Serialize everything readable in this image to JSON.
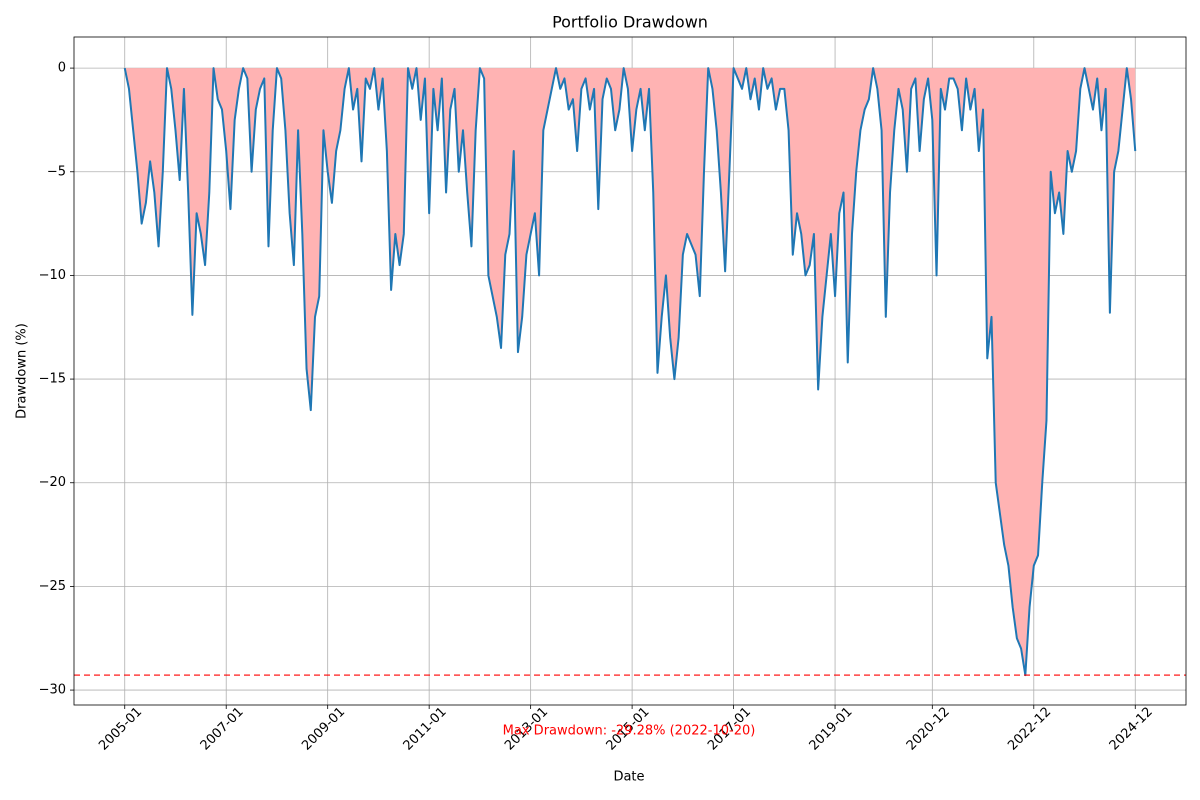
{
  "chart_data": {
    "type": "area-line",
    "title": "Portfolio Drawdown",
    "x_label": "Date",
    "y_label": "Drawdown (%)",
    "x": [
      "2005-01",
      "2005-02",
      "2005-03",
      "2005-04",
      "2005-05",
      "2005-06",
      "2005-07",
      "2005-08",
      "2005-09",
      "2005-10",
      "2005-11",
      "2005-12",
      "2006-01",
      "2006-02",
      "2006-03",
      "2006-04",
      "2006-05",
      "2006-06",
      "2006-07",
      "2006-08",
      "2006-09",
      "2006-10",
      "2006-11",
      "2006-12",
      "2007-01",
      "2007-02",
      "2007-03",
      "2007-04",
      "2007-05",
      "2007-06",
      "2007-07",
      "2007-08",
      "2007-09",
      "2007-10",
      "2007-11",
      "2007-12",
      "2008-01",
      "2008-02",
      "2008-03",
      "2008-04",
      "2008-05",
      "2008-06",
      "2008-07",
      "2008-08",
      "2008-09",
      "2008-10",
      "2008-11",
      "2008-12",
      "2009-01",
      "2009-02",
      "2009-03",
      "2009-04",
      "2009-05",
      "2009-06",
      "2009-07",
      "2009-08",
      "2009-09",
      "2009-10",
      "2009-11",
      "2009-12",
      "2010-01",
      "2010-02",
      "2010-03",
      "2010-04",
      "2010-05",
      "2010-06",
      "2010-07",
      "2010-08",
      "2010-09",
      "2010-10",
      "2010-11",
      "2010-12",
      "2011-01",
      "2011-02",
      "2011-03",
      "2011-04",
      "2011-05",
      "2011-06",
      "2011-07",
      "2011-08",
      "2011-09",
      "2011-10",
      "2011-11",
      "2011-12",
      "2012-01",
      "2012-02",
      "2012-03",
      "2012-04",
      "2012-05",
      "2012-06",
      "2012-07",
      "2012-08",
      "2012-09",
      "2012-10",
      "2012-11",
      "2012-12",
      "2013-01",
      "2013-02",
      "2013-03",
      "2013-04",
      "2013-05",
      "2013-06",
      "2013-07",
      "2013-08",
      "2013-09",
      "2013-10",
      "2013-11",
      "2013-12",
      "2014-01",
      "2014-02",
      "2014-03",
      "2014-04",
      "2014-05",
      "2014-06",
      "2014-07",
      "2014-08",
      "2014-09",
      "2014-10",
      "2014-11",
      "2014-12",
      "2015-01",
      "2015-02",
      "2015-03",
      "2015-04",
      "2015-05",
      "2015-06",
      "2015-07",
      "2015-08",
      "2015-09",
      "2015-10",
      "2015-11",
      "2015-12",
      "2016-01",
      "2016-02",
      "2016-03",
      "2016-04",
      "2016-05",
      "2016-06",
      "2016-07",
      "2016-08",
      "2016-09",
      "2016-10",
      "2016-11",
      "2016-12",
      "2017-01",
      "2017-02",
      "2017-03",
      "2017-04",
      "2017-05",
      "2017-06",
      "2017-07",
      "2017-08",
      "2017-09",
      "2017-10",
      "2017-11",
      "2017-12",
      "2018-01",
      "2018-02",
      "2018-03",
      "2018-04",
      "2018-05",
      "2018-06",
      "2018-07",
      "2018-08",
      "2018-09",
      "2018-10",
      "2018-11",
      "2018-12",
      "2019-01",
      "2019-02",
      "2019-03",
      "2019-04",
      "2019-05",
      "2019-06",
      "2019-07",
      "2019-08",
      "2019-09",
      "2019-10",
      "2019-11",
      "2019-12",
      "2020-01",
      "2020-02",
      "2020-03",
      "2020-04",
      "2020-05",
      "2020-06",
      "2020-07",
      "2020-08",
      "2020-09",
      "2020-10",
      "2020-11",
      "2020-12",
      "2021-01",
      "2021-02",
      "2021-03",
      "2021-04",
      "2021-05",
      "2021-06",
      "2021-07",
      "2021-08",
      "2021-09",
      "2021-10",
      "2021-11",
      "2021-12",
      "2022-01",
      "2022-02",
      "2022-03",
      "2022-04",
      "2022-05",
      "2022-06",
      "2022-07",
      "2022-08",
      "2022-09",
      "2022-10",
      "2022-11",
      "2022-12",
      "2023-01",
      "2023-02",
      "2023-03",
      "2023-04",
      "2023-05",
      "2023-06",
      "2023-07",
      "2023-08",
      "2023-09",
      "2023-10",
      "2023-11",
      "2023-12",
      "2024-01",
      "2024-02",
      "2024-03",
      "2024-04",
      "2024-05",
      "2024-06",
      "2024-07",
      "2024-08",
      "2024-09",
      "2024-10",
      "2024-11",
      "2024-12"
    ],
    "series": [
      {
        "color": "#1f77b4",
        "fill_color": "#ffb3b3",
        "values": [
          0,
          -1,
          -3,
          -5,
          -7.5,
          -6.5,
          -4.5,
          -6,
          -8.6,
          -5,
          0,
          -1,
          -3,
          -5.4,
          -1,
          -6,
          -11.9,
          -7,
          -8,
          -9.5,
          -6,
          0,
          -1.5,
          -2,
          -4,
          -6.8,
          -2.5,
          -1,
          0,
          -0.5,
          -5,
          -2,
          -1,
          -0.5,
          -8.6,
          -3,
          0,
          -0.5,
          -3,
          -7,
          -9.5,
          -3,
          -8,
          -14.5,
          -16.5,
          -12,
          -11,
          -3,
          -5,
          -6.5,
          -4,
          -3,
          -1,
          0,
          -2,
          -1,
          -4.5,
          -0.5,
          -1,
          0,
          -2,
          -0.5,
          -4,
          -10.7,
          -8,
          -9.5,
          -8,
          0,
          -1,
          0,
          -2.5,
          -0.5,
          -7,
          -1,
          -3,
          -0.5,
          -6,
          -2,
          -1,
          -5,
          -3,
          -6,
          -8.6,
          -3,
          0,
          -0.5,
          -10,
          -11,
          -12,
          -13.5,
          -9,
          -8,
          -4,
          -13.7,
          -12,
          -9,
          -8,
          -7,
          -10,
          -3,
          -2,
          -1,
          0,
          -1,
          -0.5,
          -2,
          -1.5,
          -4,
          -1,
          -0.5,
          -2,
          -1,
          -6.8,
          -1.5,
          -0.5,
          -1,
          -3,
          -2,
          0,
          -1,
          -4,
          -2,
          -1,
          -3,
          -1,
          -6,
          -14.7,
          -12,
          -10,
          -13,
          -15,
          -13,
          -9,
          -8,
          -8.5,
          -9,
          -11,
          -5,
          0,
          -1,
          -3,
          -6,
          -9.8,
          -5,
          0,
          -0.5,
          -1,
          0,
          -1.5,
          -0.5,
          -2,
          0,
          -1,
          -0.5,
          -2,
          -1,
          -1,
          -3,
          -9,
          -7,
          -8,
          -10,
          -9.5,
          -8,
          -15.5,
          -12,
          -10,
          -8,
          -11,
          -7,
          -6,
          -14.2,
          -8,
          -5,
          -3,
          -2,
          -1.5,
          0,
          -1,
          -3,
          -12,
          -6,
          -3,
          -1,
          -2,
          -5,
          -1,
          -0.5,
          -4,
          -1.5,
          -0.5,
          -2.5,
          -10,
          -1,
          -2,
          -0.5,
          -0.5,
          -1,
          -3,
          -0.5,
          -2,
          -1,
          -4,
          -2,
          -14,
          -12,
          -20,
          -21.5,
          -23,
          -24,
          -26,
          -27.5,
          -28,
          -29.28,
          -26,
          -24,
          -23.5,
          -20,
          -17,
          -5,
          -7,
          -6,
          -8,
          -4,
          -5,
          -4,
          -1,
          0,
          -1,
          -2,
          -0.5,
          -3,
          -1,
          -11.8,
          -5,
          -4,
          -2,
          0,
          -1.5,
          -4
        ]
      }
    ],
    "max_drawdown": {
      "value": -29.28,
      "label": "Max Drawdown: -29.28% (2022-10-20)",
      "color": "#ff0000"
    },
    "xlim": [
      "2004-01",
      "2025-12"
    ],
    "xticks": [
      "2005-01",
      "2007-01",
      "2009-01",
      "2011-01",
      "2013-01",
      "2015-01",
      "2017-01",
      "2019-01",
      "2020-12",
      "2022-12",
      "2024-12"
    ],
    "ylim": [
      -30.72,
      1.5
    ],
    "yticks": [
      0,
      {
        "value": -5,
        "label": "−5"
      },
      {
        "value": -10,
        "label": "−10"
      },
      {
        "value": -15,
        "label": "−15"
      },
      {
        "value": -20,
        "label": "−20"
      },
      {
        "value": -25,
        "label": "−25"
      },
      {
        "value": -30,
        "label": "−30"
      }
    ],
    "grid": true
  }
}
